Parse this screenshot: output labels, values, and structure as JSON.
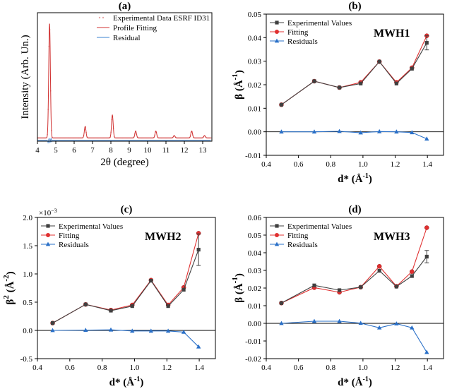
{
  "chart_data": [
    {
      "panel_label": "(a)",
      "type": "line",
      "xlabel": "2θ (degree)",
      "ylabel": "Intensity (Arb. Un.)",
      "xlim": [
        4,
        13.5
      ],
      "xticks": [
        4,
        5,
        6,
        7,
        8,
        9,
        10,
        11,
        12,
        13
      ],
      "legend_position": "top-right",
      "series": [
        {
          "name": "Experimental Data ESRF ID31",
          "color": "#e8a8a8",
          "style": "dots"
        },
        {
          "name": "Profile Fitting",
          "color": "#d03030",
          "style": "line"
        },
        {
          "name": "Residual",
          "color": "#3a80d0",
          "style": "line"
        }
      ],
      "peaks": [
        {
          "x": 4.66,
          "height": 1.0
        },
        {
          "x": 6.6,
          "height": 0.1
        },
        {
          "x": 8.08,
          "height": 0.2
        },
        {
          "x": 9.35,
          "height": 0.06
        },
        {
          "x": 10.45,
          "height": 0.06
        },
        {
          "x": 11.45,
          "height": 0.02
        },
        {
          "x": 12.4,
          "height": 0.06
        },
        {
          "x": 13.1,
          "height": 0.02
        }
      ]
    },
    {
      "panel_label": "(b)",
      "type": "line",
      "annotation": "MWH1",
      "xlabel": "d* (Å",
      "xlabel_sup": "-1",
      "ylabel": "β (Å",
      "ylabel_sup": "-1",
      "xlim": [
        0.4,
        1.5
      ],
      "ylim": [
        -0.01,
        0.05
      ],
      "xticks": [
        "0.4",
        "0.6",
        "0.8",
        "1.0",
        "1.2",
        "1.4"
      ],
      "yticks": [
        "-0.01",
        "0.00",
        "0.01",
        "0.02",
        "0.03",
        "0.04",
        "0.05"
      ],
      "legend_position": "top-left",
      "x": [
        0.494,
        0.698,
        0.854,
        0.986,
        1.102,
        1.208,
        1.304,
        1.396
      ],
      "series": [
        {
          "name": "Experimental Values",
          "color": "#404040",
          "marker": "square",
          "values": [
            0.0115,
            0.0215,
            0.0188,
            0.0205,
            0.0298,
            0.0205,
            0.0268,
            0.0378
          ],
          "error_last": 0.003
        },
        {
          "name": "Fitting",
          "color": "#e03030",
          "marker": "circle",
          "values": [
            0.0115,
            0.0215,
            0.0188,
            0.021,
            0.0298,
            0.021,
            0.0272,
            0.0408
          ]
        },
        {
          "name": "Residuals",
          "color": "#2a70c8",
          "marker": "triangle",
          "values": [
            0.0,
            0.0,
            0.0002,
            -0.0004,
            0.0001,
            0.0,
            -0.0003,
            -0.003
          ]
        }
      ]
    },
    {
      "panel_label": "(c)",
      "type": "line",
      "annotation": "MWH2",
      "multiplier": "×10",
      "multiplier_sup": "−3",
      "xlabel": "d* (Å",
      "xlabel_sup": "-1",
      "ylabel": "β",
      "ylabel_sup": "2",
      "ylabel_suffix": " (Å",
      "ylabel_sup2": "-2",
      "xlim": [
        0.4,
        1.5
      ],
      "ylim": [
        -0.5,
        2.0
      ],
      "xticks": [
        "0.4",
        "0.6",
        "0.8",
        "1.0",
        "1.2",
        "1.4"
      ],
      "yticks": [
        "-0.5",
        "0.0",
        "0.5",
        "1.0",
        "1.5",
        "2.0"
      ],
      "legend_position": "top-left",
      "x": [
        0.494,
        0.698,
        0.854,
        0.986,
        1.102,
        1.208,
        1.304,
        1.396
      ],
      "series": [
        {
          "name": "Experimental Values",
          "color": "#404040",
          "marker": "square",
          "values": [
            0.13,
            0.46,
            0.35,
            0.43,
            0.88,
            0.43,
            0.72,
            1.43
          ],
          "error_last": 0.28
        },
        {
          "name": "Fitting",
          "color": "#e03030",
          "marker": "circle",
          "values": [
            0.13,
            0.46,
            0.36,
            0.45,
            0.89,
            0.45,
            0.76,
            1.72
          ]
        },
        {
          "name": "Residuals",
          "color": "#2a70c8",
          "marker": "triangle",
          "values": [
            0.0,
            0.005,
            0.01,
            -0.01,
            -0.01,
            -0.01,
            -0.03,
            -0.29
          ]
        }
      ]
    },
    {
      "panel_label": "(d)",
      "type": "line",
      "annotation": "MWH3",
      "xlabel": "d* (Å",
      "xlabel_sup": "-1",
      "ylabel": "β (Å",
      "ylabel_sup": "-1",
      "xlim": [
        0.4,
        1.5
      ],
      "ylim": [
        -0.02,
        0.06
      ],
      "xticks": [
        "0.4",
        "0.6",
        "0.8",
        "1.0",
        "1.2",
        "1.4"
      ],
      "yticks": [
        "-0.02",
        "-0.01",
        "0.00",
        "0.01",
        "0.02",
        "0.03",
        "0.04",
        "0.05",
        "0.06"
      ],
      "legend_position": "top-left",
      "x": [
        0.494,
        0.698,
        0.854,
        0.986,
        1.102,
        1.208,
        1.304,
        1.396
      ],
      "series": [
        {
          "name": "Experimental Values",
          "color": "#404040",
          "marker": "square",
          "values": [
            0.0115,
            0.0215,
            0.0188,
            0.0205,
            0.0298,
            0.0208,
            0.0268,
            0.0378
          ],
          "error_last": 0.0035
        },
        {
          "name": "Fitting",
          "color": "#e03030",
          "marker": "circle",
          "values": [
            0.0115,
            0.0202,
            0.0176,
            0.0205,
            0.0323,
            0.021,
            0.0293,
            0.0542
          ]
        },
        {
          "name": "Residuals",
          "color": "#2a70c8",
          "marker": "triangle",
          "values": [
            0.0,
            0.0012,
            0.0012,
            0.0001,
            -0.0025,
            -0.0002,
            -0.0025,
            -0.0164
          ]
        }
      ]
    }
  ]
}
